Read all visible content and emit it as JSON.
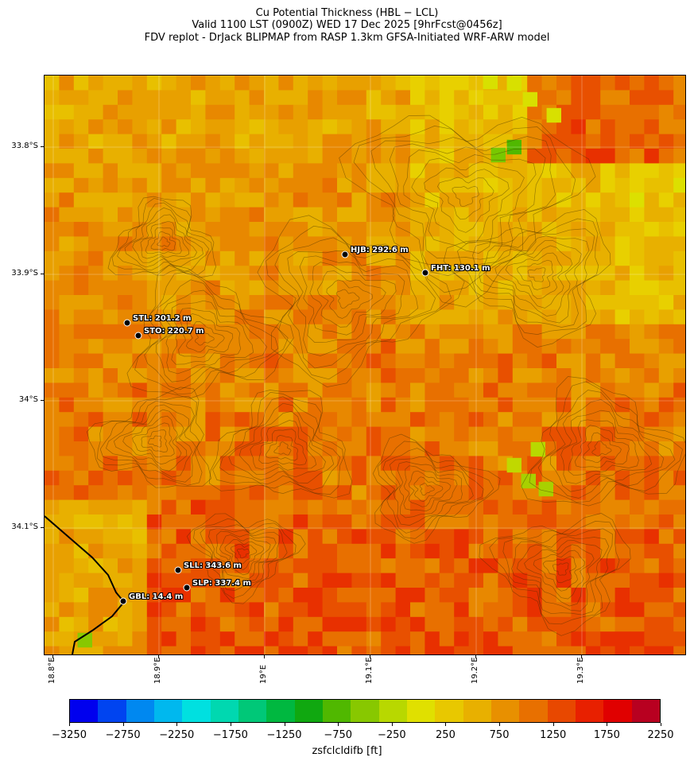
{
  "title": {
    "line1": "Cu Potential Thickness (HBL − LCL)",
    "line2": "Valid 1100 LST (0900Z) WED 17 Dec 2025 [9hrFcst@0456z]",
    "line3": "FDV replot - DrJack BLIPMAP from RASP 1.3km GFSA-Initiated WRF-ARW model"
  },
  "map": {
    "lat_ticks": [
      "33.8°S",
      "33.9°S",
      "34°S",
      "34.1°S"
    ],
    "lon_ticks": [
      "18.8°E",
      "18.9°E",
      "19°E",
      "19.1°E",
      "19.2°E",
      "19.3°E"
    ],
    "sites": [
      {
        "label": "HJB: 292.6 m"
      },
      {
        "label": "FHT: 130.1 m"
      },
      {
        "label": "STL: 201.2 m"
      },
      {
        "label": "STO: 220.7 m"
      },
      {
        "label": "SLL: 343.6 m"
      },
      {
        "label": "SLP: 337.4 m"
      },
      {
        "label": "GBL: 14.4 m"
      }
    ]
  },
  "colorbar": {
    "label": "zsfclcldifb [ft]",
    "ticks": [
      "−3250",
      "−2750",
      "−2250",
      "−1750",
      "−1250",
      "−750",
      "−250",
      "250",
      "750",
      "1250",
      "1750",
      "2250"
    ],
    "colors": [
      "#0000ee",
      "#0044f0",
      "#0088f0",
      "#00b8ee",
      "#00e0e0",
      "#00d8b0",
      "#00c878",
      "#00b840",
      "#10a810",
      "#50b800",
      "#88c800",
      "#b8d800",
      "#e0e000",
      "#e8c800",
      "#e8b000",
      "#e89000",
      "#e87000",
      "#e84800",
      "#e82000",
      "#e00000",
      "#b80020"
    ]
  }
}
